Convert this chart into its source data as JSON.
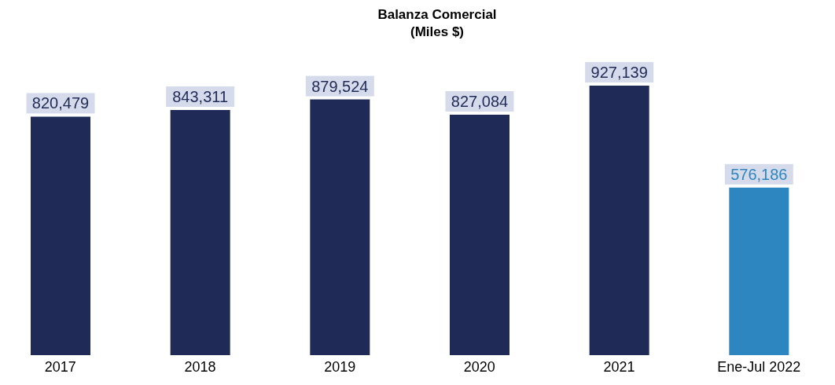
{
  "chart_data": {
    "type": "bar",
    "title": "Balanza Comercial",
    "subtitle": "(Miles $)",
    "categories": [
      "2017",
      "2018",
      "2019",
      "2020",
      "2021",
      "Ene-Jul 2022"
    ],
    "values": [
      820479,
      843311,
      879524,
      827084,
      927139,
      576186
    ],
    "colors": [
      "#1f2a56",
      "#1f2a56",
      "#1f2a56",
      "#1f2a56",
      "#1f2a56",
      "#2e86c1"
    ],
    "value_labels": [
      "820,479",
      "843,311",
      "879,524",
      "827,084",
      "927,139",
      "576,186"
    ],
    "grid": false,
    "legend": false
  }
}
